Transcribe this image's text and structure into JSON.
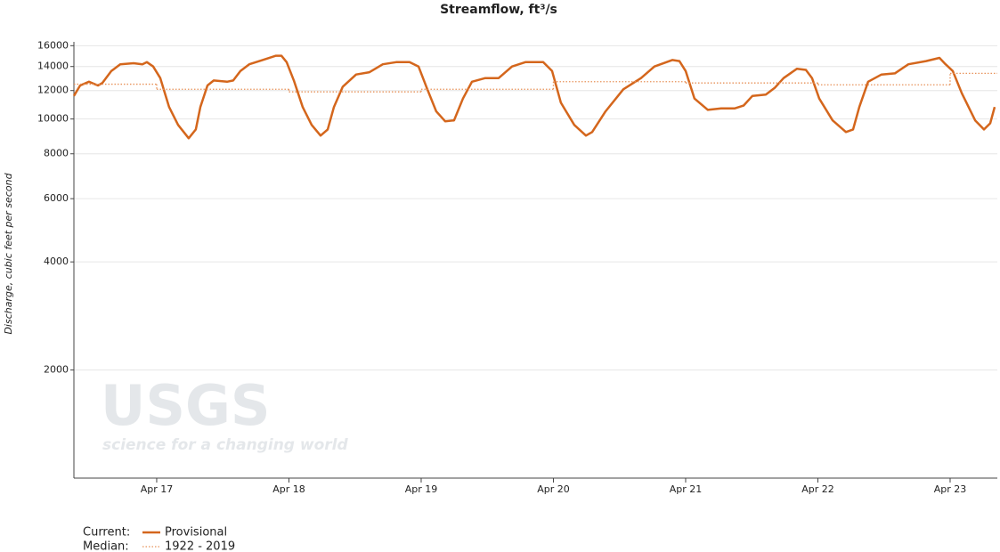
{
  "chart_data": {
    "type": "line",
    "title": "Streamflow, ft³/s",
    "y_label": "Discharge, cubic feet per second",
    "watermark": {
      "text": "USGS",
      "tagline": "science for a changing world"
    },
    "log_y": true,
    "grid": true,
    "ylim": [
      1000,
      16400
    ],
    "yticks": [
      2000,
      4000,
      6000,
      8000,
      10000,
      12000,
      14000,
      16000
    ],
    "xlim": [
      16.374,
      23.357
    ],
    "xticks": [
      {
        "value": 17,
        "label": "Apr 17"
      },
      {
        "value": 18,
        "label": "Apr 18"
      },
      {
        "value": 19,
        "label": "Apr 19"
      },
      {
        "value": 20,
        "label": "Apr 20"
      },
      {
        "value": 21,
        "label": "Apr 21"
      },
      {
        "value": 22,
        "label": "Apr 22"
      },
      {
        "value": 23,
        "label": "Apr 23"
      }
    ],
    "series": [
      {
        "name": "Provisional",
        "group": "Current:",
        "color": "#d4661c",
        "style": "solid",
        "x": [
          16.374,
          16.421,
          16.488,
          16.556,
          16.589,
          16.657,
          16.724,
          16.825,
          16.892,
          16.926,
          16.973,
          17.027,
          17.094,
          17.162,
          17.242,
          17.296,
          17.33,
          17.384,
          17.431,
          17.532,
          17.579,
          17.633,
          17.7,
          17.801,
          17.902,
          17.943,
          17.983,
          18.037,
          18.104,
          18.172,
          18.239,
          18.293,
          18.34,
          18.407,
          18.508,
          18.609,
          18.71,
          18.811,
          18.912,
          18.98,
          19.047,
          19.114,
          19.182,
          19.249,
          19.316,
          19.384,
          19.485,
          19.586,
          19.687,
          19.788,
          19.923,
          19.99,
          20.057,
          20.158,
          20.246,
          20.293,
          20.394,
          20.529,
          20.663,
          20.764,
          20.899,
          20.953,
          21.0,
          21.067,
          21.168,
          21.269,
          21.37,
          21.438,
          21.505,
          21.606,
          21.673,
          21.741,
          21.842,
          21.909,
          21.956,
          22.01,
          22.111,
          22.212,
          22.266,
          22.313,
          22.38,
          22.481,
          22.582,
          22.684,
          22.818,
          22.919,
          22.966,
          23.02,
          23.088,
          23.189,
          23.256,
          23.303,
          23.337
        ],
        "values": [
          11600,
          12400,
          12700,
          12400,
          12600,
          13600,
          14200,
          14300,
          14200,
          14400,
          14000,
          13000,
          10800,
          9630,
          8840,
          9350,
          10800,
          12400,
          12800,
          12700,
          12800,
          13600,
          14200,
          14600,
          15000,
          15000,
          14400,
          12800,
          10800,
          9630,
          8990,
          9350,
          10800,
          12300,
          13300,
          13500,
          14200,
          14400,
          14400,
          14000,
          12100,
          10500,
          9850,
          9910,
          11400,
          12700,
          13000,
          13000,
          14000,
          14400,
          14400,
          13600,
          11100,
          9630,
          8990,
          9200,
          10500,
          12100,
          13000,
          14000,
          14600,
          14500,
          13600,
          11400,
          10600,
          10700,
          10700,
          10900,
          11600,
          11700,
          12200,
          13000,
          13800,
          13700,
          13000,
          11400,
          9910,
          9200,
          9350,
          10800,
          12700,
          13300,
          13400,
          14200,
          14500,
          14800,
          14200,
          13600,
          11800,
          9910,
          9350,
          9730,
          10800
        ]
      },
      {
        "name": "1922 - 2019",
        "group": "Median:",
        "color": "#e8925a",
        "style": "dotted",
        "drawstyle": "steps-post",
        "x": [
          16.374,
          17,
          18,
          19,
          20,
          21,
          22,
          23
        ],
        "values": [
          12500,
          12100,
          11900,
          12100,
          12700,
          12600,
          12450,
          13400
        ]
      }
    ]
  }
}
